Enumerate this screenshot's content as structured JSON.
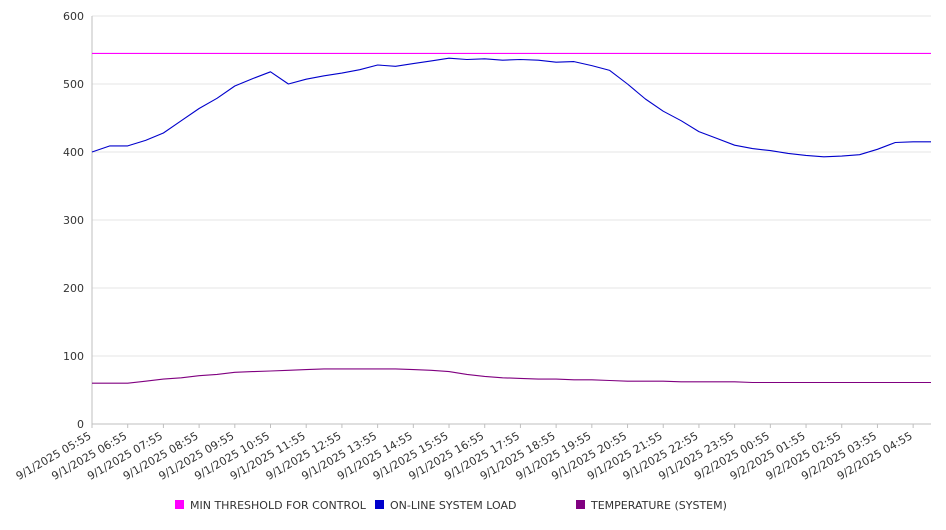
{
  "chart_data": {
    "type": "line",
    "title": "",
    "xlabel": "",
    "ylabel": "",
    "ylim": [
      0,
      600
    ],
    "y_ticks": [
      0,
      100,
      200,
      300,
      400,
      500,
      600
    ],
    "grid": "horizontal",
    "legend_placement": "bottom",
    "x_tick_labels": [
      "9/1/2025 05:55",
      "9/1/2025 06:55",
      "9/1/2025 07:55",
      "9/1/2025 08:55",
      "9/1/2025 09:55",
      "9/1/2025 10:55",
      "9/1/2025 11:55",
      "9/1/2025 12:55",
      "9/1/2025 13:55",
      "9/1/2025 14:55",
      "9/1/2025 15:55",
      "9/1/2025 16:55",
      "9/1/2025 17:55",
      "9/1/2025 18:55",
      "9/1/2025 19:55",
      "9/1/2025 20:55",
      "9/1/2025 21:55",
      "9/1/2025 22:55",
      "9/1/2025 23:55",
      "9/2/2025 00:55",
      "9/2/2025 01:55",
      "9/2/2025 02:55",
      "9/2/2025 03:55",
      "9/2/2025 04:55"
    ],
    "x": [
      "9/1/2025 05:55",
      "9/1/2025 06:25",
      "9/1/2025 06:55",
      "9/1/2025 07:25",
      "9/1/2025 07:55",
      "9/1/2025 08:25",
      "9/1/2025 08:55",
      "9/1/2025 09:25",
      "9/1/2025 09:55",
      "9/1/2025 10:25",
      "9/1/2025 10:55",
      "9/1/2025 11:25",
      "9/1/2025 11:55",
      "9/1/2025 12:25",
      "9/1/2025 12:55",
      "9/1/2025 13:25",
      "9/1/2025 13:55",
      "9/1/2025 14:25",
      "9/1/2025 14:55",
      "9/1/2025 15:25",
      "9/1/2025 15:55",
      "9/1/2025 16:25",
      "9/1/2025 16:55",
      "9/1/2025 17:25",
      "9/1/2025 17:55",
      "9/1/2025 18:25",
      "9/1/2025 18:55",
      "9/1/2025 19:25",
      "9/1/2025 19:55",
      "9/1/2025 20:25",
      "9/1/2025 20:55",
      "9/1/2025 21:25",
      "9/1/2025 21:55",
      "9/1/2025 22:25",
      "9/1/2025 22:55",
      "9/1/2025 23:25",
      "9/1/2025 23:55",
      "9/2/2025 00:25",
      "9/2/2025 00:55",
      "9/2/2025 01:25",
      "9/2/2025 01:55",
      "9/2/2025 02:25",
      "9/2/2025 02:55",
      "9/2/2025 03:25",
      "9/2/2025 03:55",
      "9/2/2025 04:25",
      "9/2/2025 04:55",
      "9/2/2025 05:25"
    ],
    "series": [
      {
        "name": "MIN THRESHOLD FOR CONTROL",
        "color": "#ff00ff",
        "values": [
          545,
          545,
          545,
          545,
          545,
          545,
          545,
          545,
          545,
          545,
          545,
          545,
          545,
          545,
          545,
          545,
          545,
          545,
          545,
          545,
          545,
          545,
          545,
          545,
          545,
          545,
          545,
          545,
          545,
          545,
          545,
          545,
          545,
          545,
          545,
          545,
          545,
          545,
          545,
          545,
          545,
          545,
          545,
          545,
          545,
          545,
          545,
          545
        ]
      },
      {
        "name": "ON-LINE SYSTEM LOAD",
        "color": "#0000cc",
        "values": [
          400,
          409,
          409,
          417,
          428,
          446,
          464,
          479,
          497,
          508,
          518,
          500,
          507,
          512,
          516,
          521,
          528,
          526,
          530,
          534,
          538,
          536,
          537,
          535,
          536,
          535,
          532,
          533,
          527,
          520,
          500,
          478,
          460,
          446,
          430,
          420,
          410,
          405,
          402,
          398,
          395,
          393,
          394,
          396,
          404,
          414,
          415,
          415
        ]
      },
      {
        "name": "TEMPERATURE (SYSTEM)",
        "color": "#800080",
        "values": [
          60,
          60,
          60,
          63,
          66,
          68,
          71,
          73,
          76,
          77,
          78,
          79,
          80,
          81,
          81,
          81,
          81,
          81,
          80,
          79,
          77,
          73,
          70,
          68,
          67,
          66,
          66,
          65,
          65,
          64,
          63,
          63,
          63,
          62,
          62,
          62,
          62,
          61,
          61,
          61,
          61,
          61,
          61,
          61,
          61,
          61,
          61,
          61
        ]
      }
    ]
  }
}
